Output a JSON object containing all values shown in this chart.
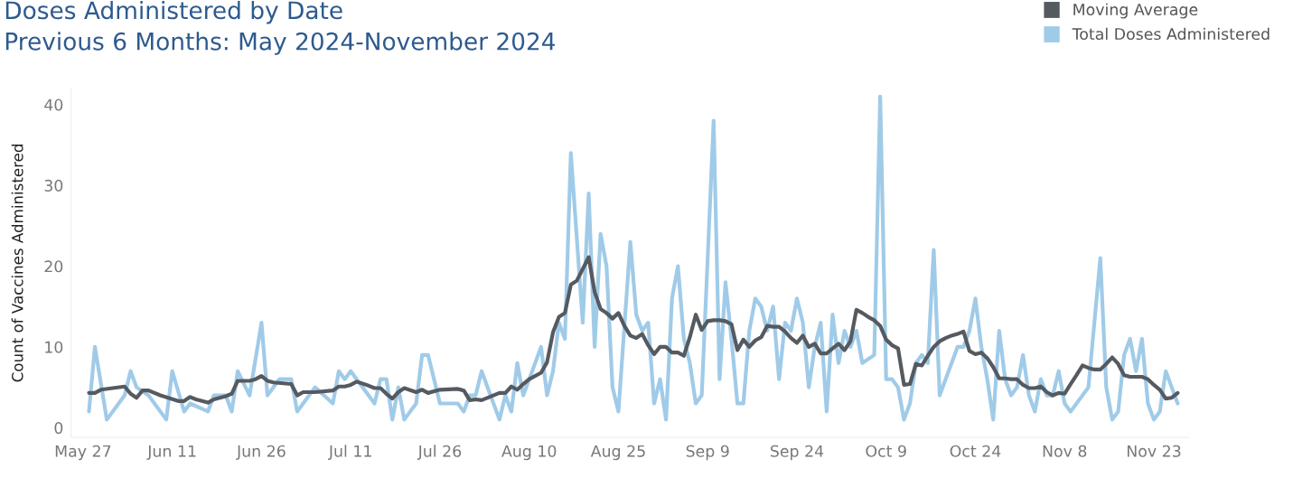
{
  "chart_data": {
    "type": "line",
    "title": "Doses Administered by Date",
    "subtitle": "Previous 6 Months: May 2024-November 2024",
    "ylabel": "Count of Vaccines Administered",
    "xlim": [
      "2024-05-25",
      "2024-11-29"
    ],
    "xticks": [
      {
        "value": "2024-05-27",
        "label": "May 27"
      },
      {
        "value": "2024-06-11",
        "label": "Jun 11"
      },
      {
        "value": "2024-06-26",
        "label": "Jun 26"
      },
      {
        "value": "2024-07-11",
        "label": "Jul 11"
      },
      {
        "value": "2024-07-26",
        "label": "Jul 26"
      },
      {
        "value": "2024-08-10",
        "label": "Aug 10"
      },
      {
        "value": "2024-08-25",
        "label": "Aug 25"
      },
      {
        "value": "2024-09-09",
        "label": "Sep 9"
      },
      {
        "value": "2024-09-24",
        "label": "Sep 24"
      },
      {
        "value": "2024-10-09",
        "label": "Oct 9"
      },
      {
        "value": "2024-10-24",
        "label": "Oct 24"
      },
      {
        "value": "2024-11-08",
        "label": "Nov 8"
      },
      {
        "value": "2024-11-23",
        "label": "Nov 23"
      }
    ],
    "ylim": [
      -1.2,
      42
    ],
    "yticks": [
      0,
      10,
      20,
      30,
      40
    ],
    "grid": false,
    "legend": "top right",
    "marker": "none",
    "line_style": "solid",
    "series": [
      {
        "name": "Total Doses Administered",
        "color": "#a0cbe8",
        "x": [
          "2024-05-28",
          "2024-05-29",
          "2024-05-31",
          "2024-06-03",
          "2024-06-04",
          "2024-06-05",
          "2024-06-07",
          "2024-06-10",
          "2024-06-11",
          "2024-06-13",
          "2024-06-14",
          "2024-06-17",
          "2024-06-18",
          "2024-06-20",
          "2024-06-21",
          "2024-06-22",
          "2024-06-24",
          "2024-06-26",
          "2024-06-27",
          "2024-06-29",
          "2024-07-01",
          "2024-07-02",
          "2024-07-05",
          "2024-07-08",
          "2024-07-09",
          "2024-07-10",
          "2024-07-11",
          "2024-07-12",
          "2024-07-15",
          "2024-07-16",
          "2024-07-17",
          "2024-07-18",
          "2024-07-19",
          "2024-07-20",
          "2024-07-22",
          "2024-07-23",
          "2024-07-24",
          "2024-07-26",
          "2024-07-29",
          "2024-07-30",
          "2024-07-31",
          "2024-08-01",
          "2024-08-02",
          "2024-08-05",
          "2024-08-06",
          "2024-08-07",
          "2024-08-08",
          "2024-08-09",
          "2024-08-12",
          "2024-08-13",
          "2024-08-14",
          "2024-08-15",
          "2024-08-16",
          "2024-08-17",
          "2024-08-19",
          "2024-08-20",
          "2024-08-21",
          "2024-08-22",
          "2024-08-23",
          "2024-08-24",
          "2024-08-25",
          "2024-08-27",
          "2024-08-28",
          "2024-08-29",
          "2024-08-30",
          "2024-08-31",
          "2024-09-01",
          "2024-09-02",
          "2024-09-03",
          "2024-09-04",
          "2024-09-05",
          "2024-09-06",
          "2024-09-07",
          "2024-09-08",
          "2024-09-10",
          "2024-09-11",
          "2024-09-12",
          "2024-09-13",
          "2024-09-14",
          "2024-09-15",
          "2024-09-16",
          "2024-09-17",
          "2024-09-18",
          "2024-09-19",
          "2024-09-20",
          "2024-09-21",
          "2024-09-22",
          "2024-09-23",
          "2024-09-24",
          "2024-09-25",
          "2024-09-26",
          "2024-09-27",
          "2024-09-28",
          "2024-09-29",
          "2024-09-30",
          "2024-10-01",
          "2024-10-02",
          "2024-10-03",
          "2024-10-04",
          "2024-10-05",
          "2024-10-07",
          "2024-10-08",
          "2024-10-09",
          "2024-10-10",
          "2024-10-11",
          "2024-10-12",
          "2024-10-13",
          "2024-10-14",
          "2024-10-15",
          "2024-10-16",
          "2024-10-17",
          "2024-10-18",
          "2024-10-21",
          "2024-10-22",
          "2024-10-23",
          "2024-10-24",
          "2024-10-25",
          "2024-10-26",
          "2024-10-27",
          "2024-10-28",
          "2024-10-29",
          "2024-10-30",
          "2024-10-31",
          "2024-11-01",
          "2024-11-02",
          "2024-11-03",
          "2024-11-04",
          "2024-11-05",
          "2024-11-06",
          "2024-11-07",
          "2024-11-08",
          "2024-11-09",
          "2024-11-12",
          "2024-11-13",
          "2024-11-14",
          "2024-11-15",
          "2024-11-16",
          "2024-11-17",
          "2024-11-18",
          "2024-11-19",
          "2024-11-20",
          "2024-11-21",
          "2024-11-22",
          "2024-11-23",
          "2024-11-24",
          "2024-11-25",
          "2024-11-26",
          "2024-11-27"
        ],
        "values": [
          2,
          10,
          1,
          4,
          7,
          5,
          4,
          1,
          7,
          2,
          3,
          2,
          4,
          4,
          2,
          7,
          4,
          13,
          4,
          6,
          6,
          2,
          5,
          3,
          7,
          6,
          7,
          6,
          3,
          6,
          6,
          1,
          5,
          1,
          3,
          9,
          9,
          3,
          3,
          2,
          4,
          4,
          7,
          1,
          4,
          2,
          8,
          4,
          10,
          4,
          7,
          13,
          11,
          34,
          13,
          29,
          10,
          24,
          20,
          5,
          2,
          23,
          14,
          12,
          13,
          3,
          6,
          1,
          16,
          20,
          11,
          8,
          3,
          4,
          38,
          6,
          18,
          11,
          3,
          3,
          12,
          16,
          15,
          12,
          15,
          6,
          13,
          12,
          16,
          13,
          5,
          10,
          13,
          2,
          14,
          8,
          12,
          10,
          12,
          8,
          9,
          41,
          6,
          6,
          5,
          1,
          3,
          8,
          9,
          8,
          22,
          4,
          10,
          10,
          12,
          16,
          10,
          6,
          1,
          12,
          6,
          4,
          5,
          9,
          4,
          2,
          6,
          4,
          4,
          7,
          3,
          2,
          5,
          13,
          21,
          5,
          1,
          2,
          9,
          11,
          7,
          11,
          3,
          1,
          2,
          7,
          5,
          3
        ]
      },
      {
        "name": "Moving Average",
        "color": "#555a61",
        "x": [
          "2024-05-28",
          "2024-05-29",
          "2024-05-30",
          "2024-06-03",
          "2024-06-04",
          "2024-06-05",
          "2024-06-06",
          "2024-06-07",
          "2024-06-09",
          "2024-06-12",
          "2024-06-13",
          "2024-06-14",
          "2024-06-15",
          "2024-06-17",
          "2024-06-18",
          "2024-06-20",
          "2024-06-21",
          "2024-06-22",
          "2024-06-24",
          "2024-06-25",
          "2024-06-26",
          "2024-06-27",
          "2024-06-28",
          "2024-07-01",
          "2024-07-02",
          "2024-07-03",
          "2024-07-05",
          "2024-07-08",
          "2024-07-09",
          "2024-07-10",
          "2024-07-11",
          "2024-07-12",
          "2024-07-14",
          "2024-07-15",
          "2024-07-16",
          "2024-07-17",
          "2024-07-18",
          "2024-07-19",
          "2024-07-20",
          "2024-07-22",
          "2024-07-23",
          "2024-07-24",
          "2024-07-26",
          "2024-07-29",
          "2024-07-30",
          "2024-07-31",
          "2024-08-01",
          "2024-08-02",
          "2024-08-05",
          "2024-08-06",
          "2024-08-07",
          "2024-08-08",
          "2024-08-09",
          "2024-08-10",
          "2024-08-12",
          "2024-08-13",
          "2024-08-14",
          "2024-08-15",
          "2024-08-16",
          "2024-08-17",
          "2024-08-18",
          "2024-08-20",
          "2024-08-21",
          "2024-08-22",
          "2024-08-23",
          "2024-08-24",
          "2024-08-25",
          "2024-08-26",
          "2024-08-27",
          "2024-08-28",
          "2024-08-29",
          "2024-08-30",
          "2024-08-31",
          "2024-09-01",
          "2024-09-02",
          "2024-09-03",
          "2024-09-04",
          "2024-09-05",
          "2024-09-06",
          "2024-09-07",
          "2024-09-08",
          "2024-09-09",
          "2024-09-10",
          "2024-09-11",
          "2024-09-12",
          "2024-09-13",
          "2024-09-14",
          "2024-09-15",
          "2024-09-16",
          "2024-09-17",
          "2024-09-18",
          "2024-09-19",
          "2024-09-20",
          "2024-09-21",
          "2024-09-22",
          "2024-09-23",
          "2024-09-24",
          "2024-09-25",
          "2024-09-26",
          "2024-09-27",
          "2024-09-28",
          "2024-09-29",
          "2024-09-30",
          "2024-10-01",
          "2024-10-02",
          "2024-10-03",
          "2024-10-04",
          "2024-10-05",
          "2024-10-06",
          "2024-10-07",
          "2024-10-08",
          "2024-10-09",
          "2024-10-10",
          "2024-10-11",
          "2024-10-12",
          "2024-10-13",
          "2024-10-14",
          "2024-10-15",
          "2024-10-16",
          "2024-10-17",
          "2024-10-18",
          "2024-10-19",
          "2024-10-20",
          "2024-10-21",
          "2024-10-22",
          "2024-10-23",
          "2024-10-24",
          "2024-10-25",
          "2024-10-26",
          "2024-10-27",
          "2024-10-28",
          "2024-10-29",
          "2024-10-30",
          "2024-10-31",
          "2024-11-01",
          "2024-11-02",
          "2024-11-03",
          "2024-11-04",
          "2024-11-05",
          "2024-11-06",
          "2024-11-07",
          "2024-11-08",
          "2024-11-09",
          "2024-11-10",
          "2024-11-11",
          "2024-11-12",
          "2024-11-13",
          "2024-11-14",
          "2024-11-15",
          "2024-11-16",
          "2024-11-17",
          "2024-11-18",
          "2024-11-19",
          "2024-11-20",
          "2024-11-21",
          "2024-11-22",
          "2024-11-23",
          "2024-11-24",
          "2024-11-25",
          "2024-11-26",
          "2024-11-27"
        ],
        "values": [
          4.3,
          4.3,
          4.7,
          5.1,
          4.2,
          3.7,
          4.6,
          4.6,
          4.0,
          3.3,
          3.3,
          3.8,
          3.5,
          3.1,
          3.5,
          3.9,
          4.2,
          5.8,
          5.8,
          6.0,
          6.4,
          5.8,
          5.6,
          5.4,
          4.0,
          4.4,
          4.4,
          4.6,
          5.1,
          5.1,
          5.3,
          5.7,
          5.2,
          4.9,
          4.9,
          4.2,
          3.6,
          4.4,
          4.9,
          4.4,
          4.7,
          4.3,
          4.7,
          4.8,
          4.6,
          3.4,
          3.5,
          3.4,
          4.3,
          4.3,
          5.1,
          4.7,
          5.4,
          6.0,
          6.8,
          8.1,
          11.8,
          13.7,
          14.2,
          17.7,
          18.2,
          21.1,
          16.8,
          14.7,
          14.2,
          13.5,
          14.2,
          12.6,
          11.4,
          11.1,
          11.6,
          10.2,
          9.1,
          10.0,
          10.0,
          9.3,
          9.3,
          8.9,
          11.2,
          14.0,
          12.1,
          13.2,
          13.3,
          13.3,
          13.2,
          12.8,
          9.6,
          10.9,
          10.0,
          10.8,
          11.2,
          12.6,
          12.5,
          12.5,
          11.9,
          11.1,
          10.5,
          11.4,
          10.0,
          10.4,
          9.2,
          9.2,
          9.8,
          10.4,
          9.6,
          10.7,
          14.6,
          14.2,
          13.7,
          13.3,
          12.6,
          10.9,
          10.2,
          9.8,
          5.3,
          5.4,
          7.9,
          7.7,
          8.9,
          10.0,
          10.7,
          11.1,
          11.4,
          11.6,
          11.9,
          9.5,
          9.1,
          9.3,
          8.6,
          7.5,
          6.1,
          6.1,
          6.0,
          6.0,
          5.3,
          4.9,
          4.9,
          5.1,
          4.4,
          4.0,
          4.3,
          4.2,
          5.4,
          6.5,
          7.7,
          7.4,
          7.2,
          7.2,
          7.9,
          8.7,
          7.9,
          6.5,
          6.3,
          6.3,
          6.3,
          6.0,
          5.3,
          4.7,
          3.6,
          3.7,
          4.3
        ]
      }
    ]
  }
}
